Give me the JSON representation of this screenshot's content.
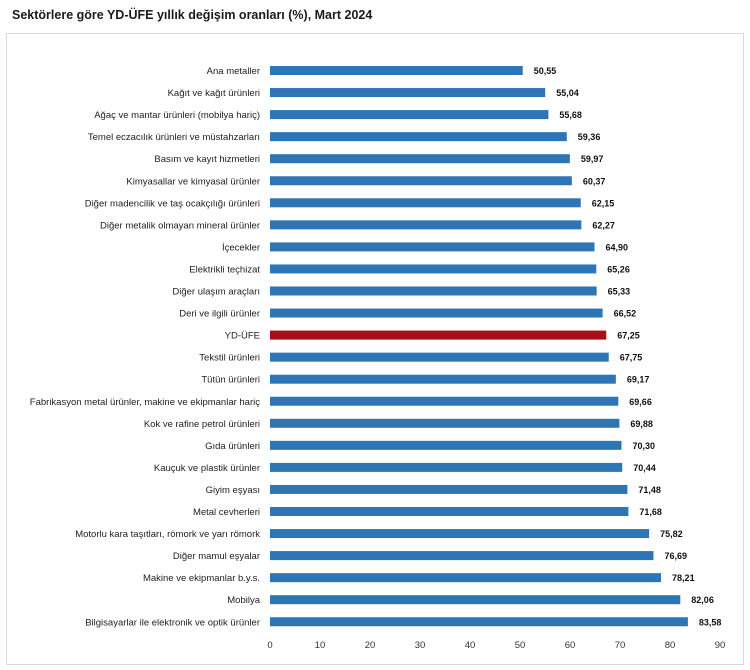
{
  "chart_data": {
    "type": "bar",
    "orientation": "horizontal",
    "title": "Sektörlere göre YD-ÜFE yıllık değişim oranları (%), Mart 2024",
    "xlabel": "",
    "ylabel": "",
    "xlim": [
      0,
      90
    ],
    "x_ticks": [
      0,
      10,
      20,
      30,
      40,
      50,
      60,
      70,
      80,
      90
    ],
    "grid": false,
    "legend": "none",
    "default_color": "#2E75B6",
    "highlight_color": "#A50F15",
    "highlight_category": "YD-ÜFE",
    "categories": [
      "Ana metaller",
      "Kağıt ve kağıt ürünleri",
      "Ağaç ve mantar ürünleri (mobilya hariç)",
      "Temel eczacılık ürünleri ve müstahzarları",
      "Basım ve kayıt hizmetleri",
      "Kimyasallar ve kimyasal ürünler",
      "Diğer madencilik ve taş ocakçılığı ürünleri",
      "Diğer metalik olmayan mineral ürünler",
      "İçecekler",
      "Elektrikli teçhizat",
      "Diğer ulaşım araçları",
      "Deri ve ilgili ürünler",
      "YD-ÜFE",
      "Tekstil ürünleri",
      "Tütün ürünleri",
      "Fabrikasyon metal ürünler, makine ve ekipmanlar hariç",
      "Kok ve rafine petrol ürünleri",
      "Gıda ürünleri",
      "Kauçuk ve plastik ürünler",
      "Giyim eşyası",
      "Metal cevherleri",
      "Motorlu kara taşıtları, römork ve yarı römork",
      "Diğer mamul eşyalar",
      "Makine ve ekipmanlar b.y.s.",
      "Mobilya",
      "Bilgisayarlar ile elektronik ve optik ürünler"
    ],
    "values": [
      50.55,
      55.04,
      55.68,
      59.36,
      59.97,
      60.37,
      62.15,
      62.27,
      64.9,
      65.26,
      65.33,
      66.52,
      67.25,
      67.75,
      69.17,
      69.66,
      69.88,
      70.3,
      70.44,
      71.48,
      71.68,
      75.82,
      76.69,
      78.21,
      82.06,
      83.58
    ],
    "value_labels": [
      "50,55",
      "55,04",
      "55,68",
      "59,36",
      "59,97",
      "60,37",
      "62,15",
      "62,27",
      "64,90",
      "65,26",
      "65,33",
      "66,52",
      "67,25",
      "67,75",
      "69,17",
      "69,66",
      "69,88",
      "70,30",
      "70,44",
      "71,48",
      "71,68",
      "75,82",
      "76,69",
      "78,21",
      "82,06",
      "83,58"
    ]
  }
}
